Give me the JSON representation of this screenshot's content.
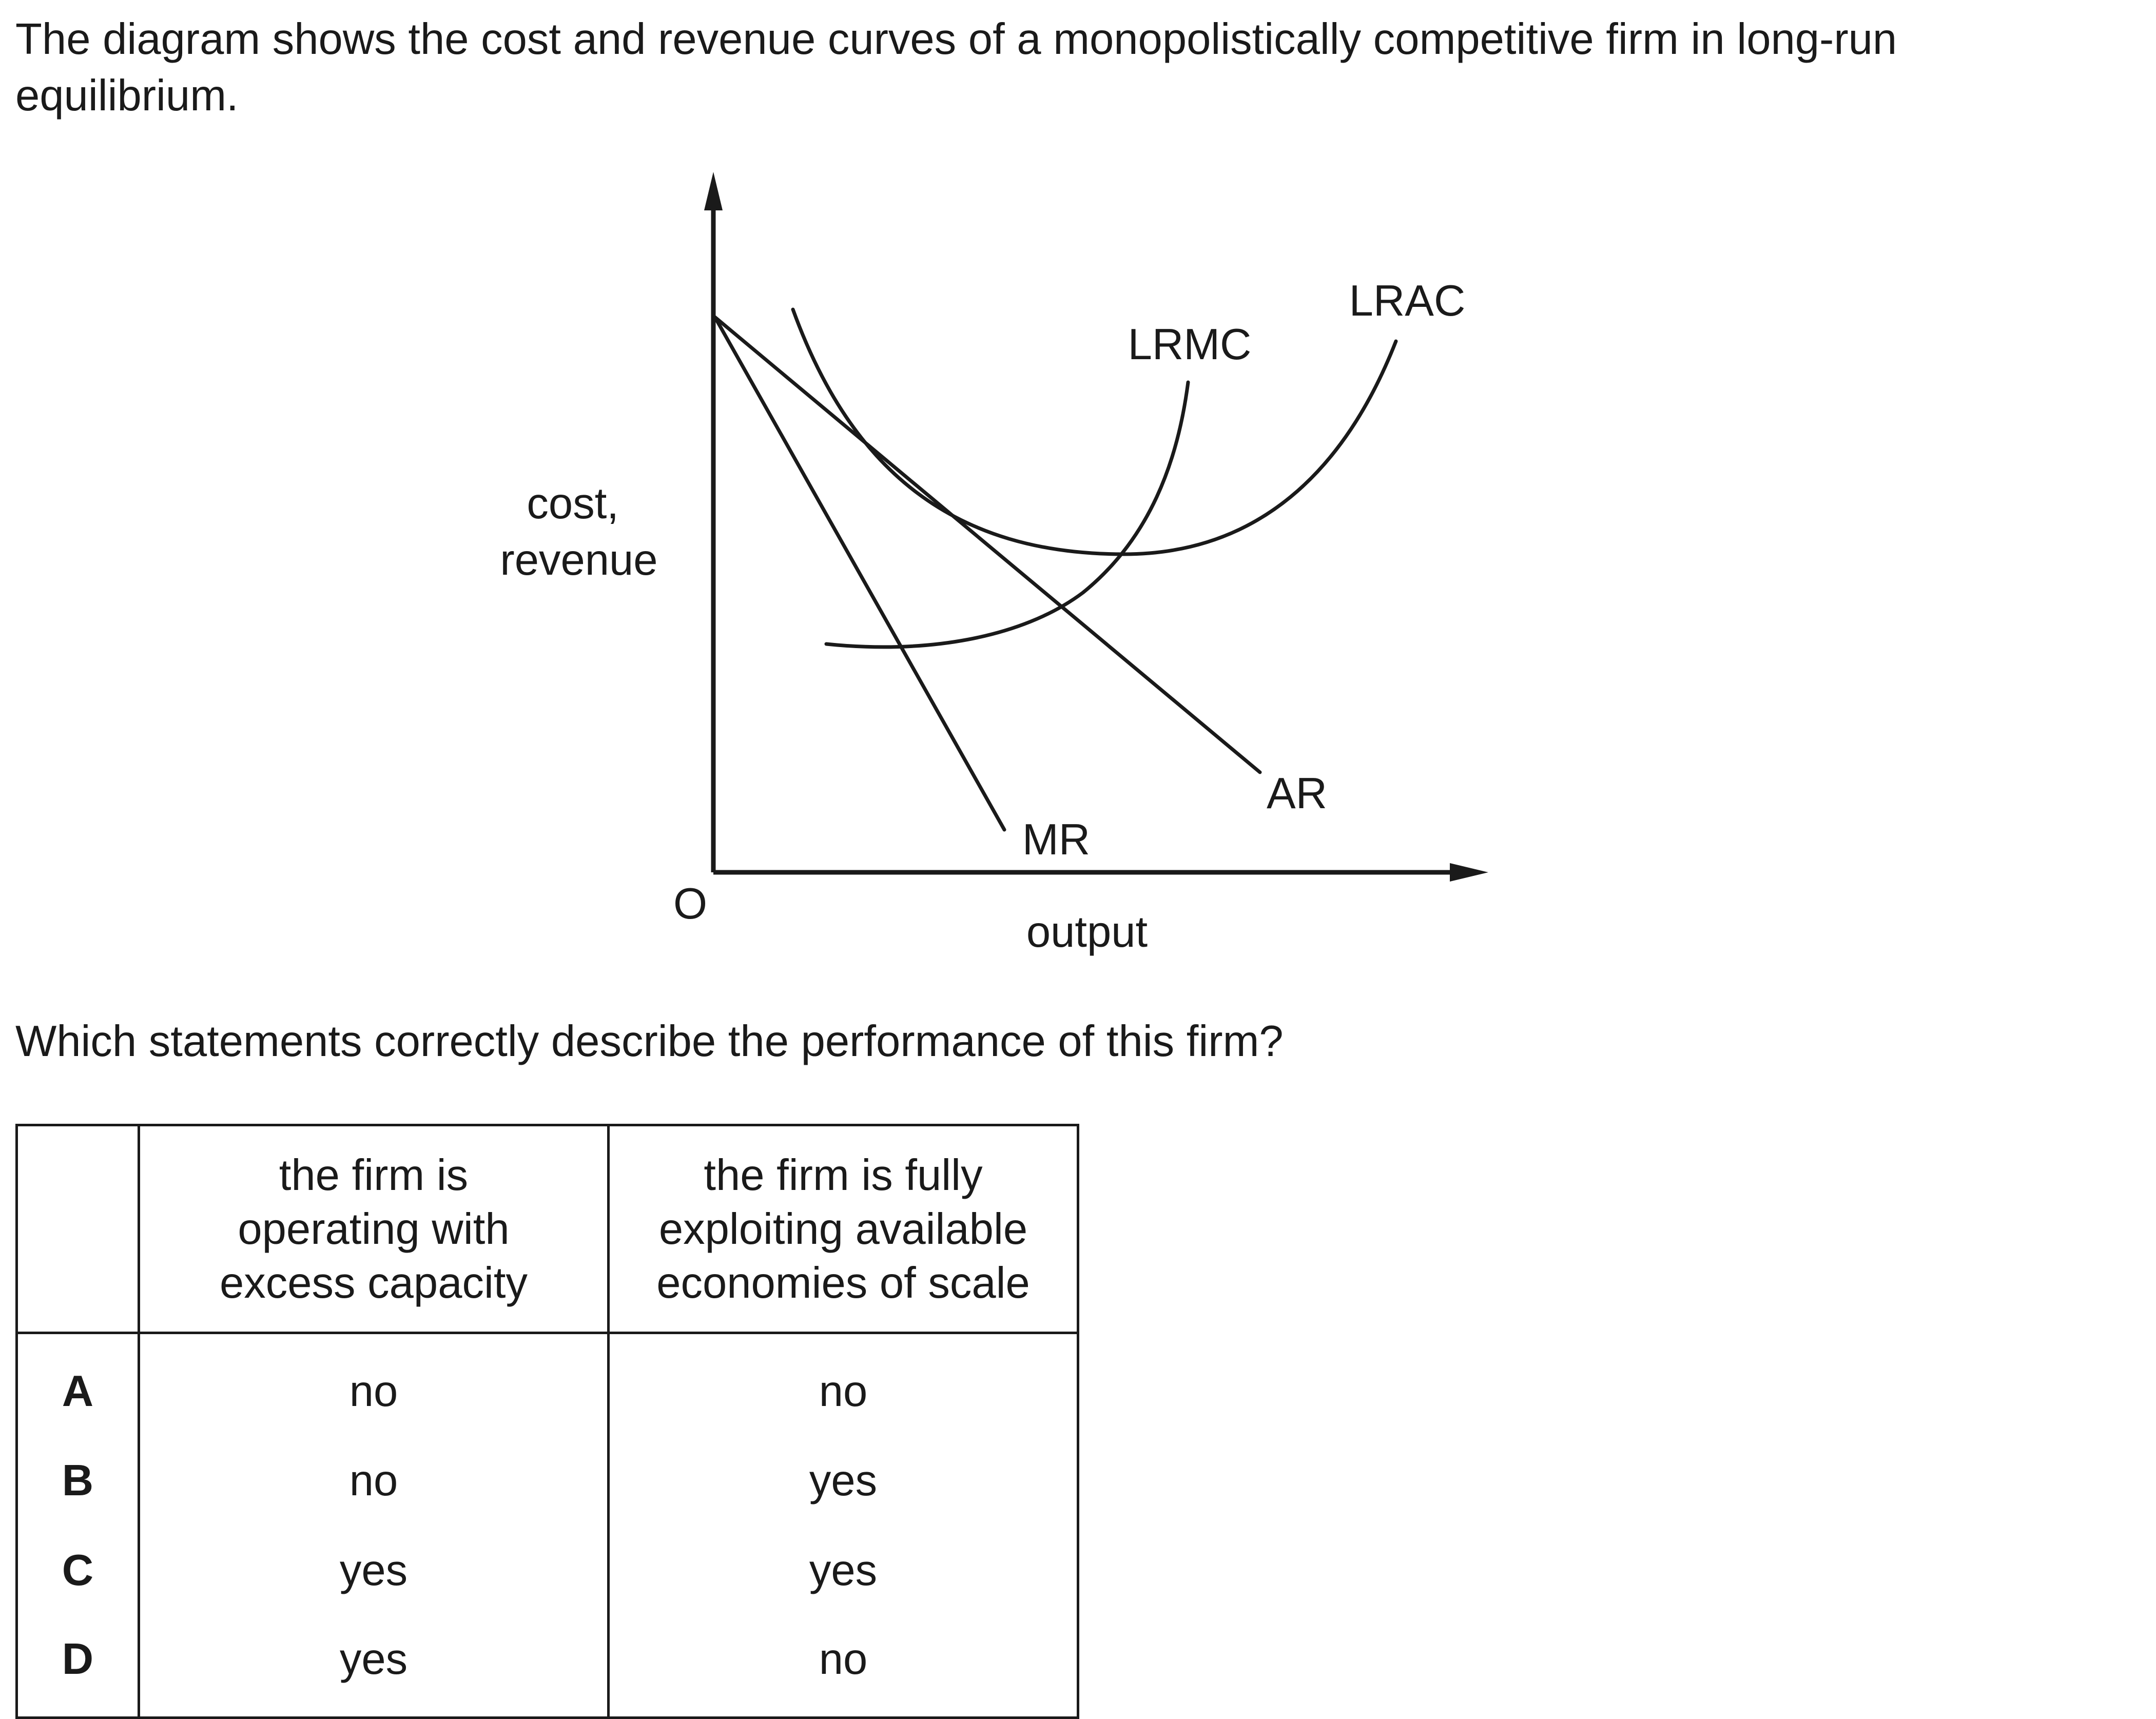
{
  "intro": "The diagram shows the cost and revenue curves of a monopolistically competitive firm in long-run equilibrium.",
  "diagram": {
    "y_label_line1": "cost,",
    "y_label_line2": "revenue",
    "x_label": "output",
    "origin_label": "O",
    "curves": {
      "lrmc": "LRMC",
      "lrac": "LRAC",
      "ar": "AR",
      "mr": "MR"
    },
    "line_color": "#1a1a1a"
  },
  "question": "Which statements correctly describe the performance of this firm?",
  "table": {
    "header": {
      "blank": "",
      "col1": "the firm is\noperating with\nexcess capacity",
      "col2": "the firm is fully\nexploiting available\neconomies of scale"
    },
    "rows": [
      {
        "option": "A",
        "col1": "no",
        "col2": "no"
      },
      {
        "option": "B",
        "col1": "no",
        "col2": "yes"
      },
      {
        "option": "C",
        "col1": "yes",
        "col2": "yes"
      },
      {
        "option": "D",
        "col1": "yes",
        "col2": "no"
      }
    ]
  }
}
